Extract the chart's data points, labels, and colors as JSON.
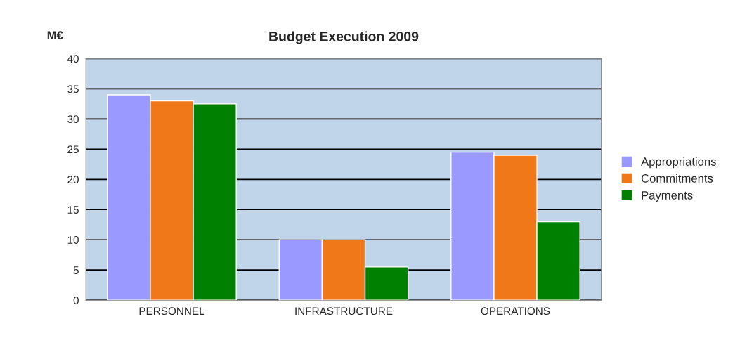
{
  "chart_data": {
    "type": "bar",
    "title": "Budget Execution 2009",
    "ylabel": "M€",
    "categories": [
      "PERSONNEL",
      "INFRASTRUCTURE",
      "OPERATIONS"
    ],
    "series": [
      {
        "name": "Appropriations",
        "color": "#9999ff",
        "values": [
          34,
          10,
          24.5
        ]
      },
      {
        "name": "Commitments",
        "color": "#f07818",
        "values": [
          33,
          10,
          24
        ]
      },
      {
        "name": "Payments",
        "color": "#008000",
        "values": [
          32.5,
          5.5,
          13
        ]
      }
    ],
    "ylim": [
      0,
      40
    ],
    "yticks": [
      0,
      5,
      10,
      15,
      20,
      25,
      30,
      35,
      40
    ],
    "grid": "y",
    "legend": "right"
  }
}
